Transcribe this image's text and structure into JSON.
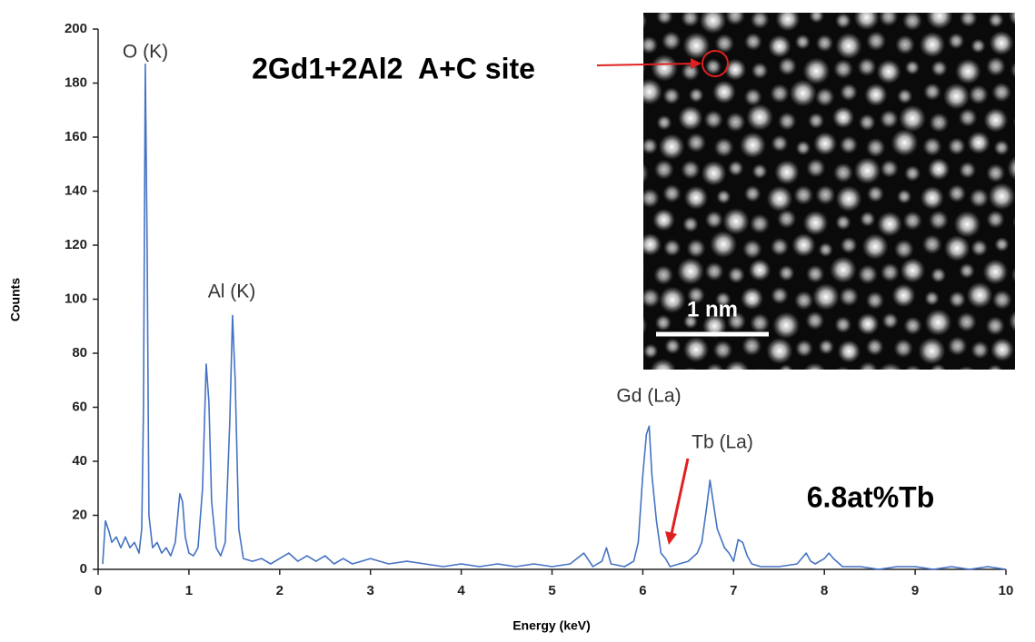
{
  "chart_data": {
    "type": "line",
    "x_label": "Energy (keV)",
    "y_label": "Counts",
    "color": "#4472c4",
    "x": [
      0.05,
      0.08,
      0.12,
      0.15,
      0.2,
      0.25,
      0.3,
      0.35,
      0.4,
      0.45,
      0.48,
      0.5,
      0.52,
      0.54,
      0.56,
      0.6,
      0.65,
      0.7,
      0.75,
      0.8,
      0.85,
      0.9,
      0.93,
      0.96,
      1.0,
      1.05,
      1.1,
      1.15,
      1.19,
      1.22,
      1.25,
      1.3,
      1.35,
      1.4,
      1.45,
      1.48,
      1.51,
      1.55,
      1.6,
      1.7,
      1.8,
      1.9,
      2.0,
      2.1,
      2.2,
      2.3,
      2.4,
      2.5,
      2.6,
      2.7,
      2.8,
      2.9,
      3.0,
      3.2,
      3.4,
      3.6,
      3.8,
      4.0,
      4.2,
      4.4,
      4.6,
      4.8,
      5.0,
      5.2,
      5.35,
      5.45,
      5.55,
      5.6,
      5.65,
      5.8,
      5.9,
      5.95,
      6.0,
      6.04,
      6.07,
      6.1,
      6.15,
      6.2,
      6.25,
      6.3,
      6.4,
      6.5,
      6.6,
      6.65,
      6.7,
      6.74,
      6.78,
      6.82,
      6.9,
      6.95,
      7.0,
      7.05,
      7.1,
      7.15,
      7.2,
      7.3,
      7.5,
      7.7,
      7.8,
      7.85,
      7.9,
      8.0,
      8.05,
      8.1,
      8.2,
      8.4,
      8.6,
      8.8,
      9.0,
      9.2,
      9.4,
      9.6,
      9.8,
      10.0
    ],
    "values": [
      2,
      18,
      14,
      10,
      12,
      8,
      12,
      8,
      10,
      6,
      15,
      60,
      187,
      120,
      20,
      8,
      10,
      6,
      8,
      5,
      10,
      28,
      25,
      12,
      6,
      5,
      8,
      30,
      76,
      62,
      25,
      8,
      5,
      10,
      55,
      94,
      70,
      15,
      4,
      3,
      4,
      2,
      4,
      6,
      3,
      5,
      3,
      5,
      2,
      4,
      2,
      3,
      4,
      2,
      3,
      2,
      1,
      2,
      1,
      2,
      1,
      2,
      1,
      2,
      6,
      1,
      3,
      8,
      2,
      1,
      3,
      10,
      35,
      50,
      53,
      35,
      18,
      6,
      4,
      1,
      2,
      3,
      6,
      10,
      22,
      33,
      24,
      15,
      8,
      6,
      3,
      11,
      10,
      5,
      2,
      1,
      1,
      2,
      6,
      3,
      2,
      4,
      6,
      4,
      1,
      1,
      0,
      1,
      1,
      0,
      1,
      0,
      1,
      0
    ],
    "xlim": [
      0,
      10
    ],
    "xticks": [
      0,
      1,
      2,
      3,
      4,
      5,
      6,
      7,
      8,
      9,
      10
    ],
    "ylim": [
      0,
      200
    ],
    "yticks": [
      0,
      20,
      40,
      60,
      80,
      100,
      120,
      140,
      160,
      180,
      200
    ],
    "annotations": [
      "O (K)",
      "Al (K)",
      "Gd (La)",
      "Tb (La)",
      "6.8at%Tb"
    ],
    "inset": {
      "label": "2Gd1+2Al2  A+C site",
      "scale_bar": "1 nm"
    }
  }
}
